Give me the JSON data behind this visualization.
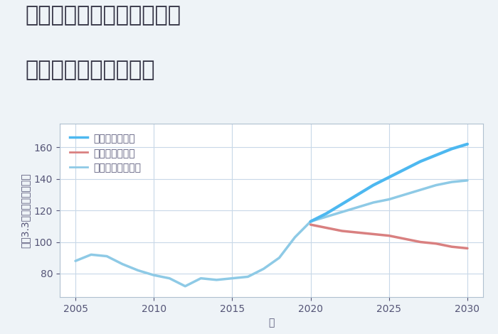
{
  "title_line1": "奈良県奈良市学園大和町の",
  "title_line2": "中古戸建ての価格推移",
  "xlabel": "年",
  "ylabel": "坪（3.3㎡）単価（万円）",
  "background_color": "#eef3f7",
  "plot_bg_color": "#ffffff",
  "ylim": [
    65,
    175
  ],
  "xlim": [
    2004,
    2031
  ],
  "yticks": [
    80,
    100,
    120,
    140,
    160
  ],
  "xticks": [
    2005,
    2010,
    2015,
    2020,
    2025,
    2030
  ],
  "grid_color": "#c8d8e8",
  "normal_scenario": {
    "label": "ノーマルシナリオ",
    "color": "#8ecae6",
    "linewidth": 2.5,
    "x": [
      2005,
      2006,
      2007,
      2008,
      2009,
      2010,
      2011,
      2012,
      2013,
      2014,
      2015,
      2016,
      2017,
      2018,
      2019,
      2020,
      2021,
      2022,
      2023,
      2024,
      2025,
      2026,
      2027,
      2028,
      2029,
      2030
    ],
    "y": [
      88,
      92,
      91,
      86,
      82,
      79,
      77,
      72,
      77,
      76,
      77,
      78,
      83,
      90,
      103,
      113,
      116,
      119,
      122,
      125,
      127,
      130,
      133,
      136,
      138,
      139
    ]
  },
  "good_scenario": {
    "label": "グッドシナリオ",
    "color": "#4db8f0",
    "linewidth": 3.0,
    "x": [
      2020,
      2021,
      2022,
      2023,
      2024,
      2025,
      2026,
      2027,
      2028,
      2029,
      2030
    ],
    "y": [
      113,
      118,
      124,
      130,
      136,
      141,
      146,
      151,
      155,
      159,
      162
    ]
  },
  "bad_scenario": {
    "label": "バッドシナリオ",
    "color": "#d98080",
    "linewidth": 2.5,
    "x": [
      2020,
      2021,
      2022,
      2023,
      2024,
      2025,
      2026,
      2027,
      2028,
      2029,
      2030
    ],
    "y": [
      111,
      109,
      107,
      106,
      105,
      104,
      102,
      100,
      99,
      97,
      96
    ]
  },
  "legend_fontsize": 10,
  "title_fontsize": 22,
  "axis_fontsize": 10,
  "tick_fontsize": 10,
  "tick_color": "#555577",
  "label_color": "#555577"
}
